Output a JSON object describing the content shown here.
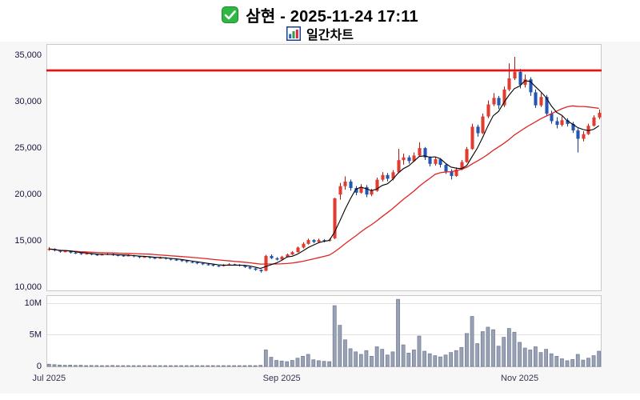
{
  "header": {
    "title": "삼현 - 2025-11-24 17:11",
    "subtitle": "일간차트",
    "icons": {
      "title_icon": "green-checkbox",
      "subtitle_icon": "bar-chart"
    }
  },
  "chart_data": {
    "type": "candlestick+volume",
    "title": "삼현 daily candlestick chart with volume",
    "candle_format": [
      "open",
      "high",
      "low",
      "close",
      "volume_millions"
    ],
    "y_axis": {
      "range": [
        9500,
        36100
      ],
      "ticks": [
        10000,
        15000,
        20000,
        25000,
        30000,
        35000
      ]
    },
    "volume_axis": {
      "range_millions": [
        0,
        11
      ],
      "unit": "shares (millions)",
      "ticks": [
        {
          "value": 0,
          "label": "0"
        },
        {
          "value": 5,
          "label": "5M"
        },
        {
          "value": 10,
          "label": "10M"
        }
      ]
    },
    "x_ticks": [
      {
        "index": 0,
        "label": "Jul 2025"
      },
      {
        "index": 44,
        "label": "Sep 2025"
      },
      {
        "index": 89,
        "label": "Nov 2025"
      }
    ],
    "alert_line_price": 33250,
    "overlays": [
      {
        "name": "ma-slow",
        "window": 20,
        "color": "#e02424",
        "width": 1.3
      },
      {
        "name": "ma-fast",
        "window": 5,
        "color": "#000000",
        "width": 1.1
      }
    ],
    "colors": {
      "up": "#e23b30",
      "up_dark": "#b2170e",
      "down": "#2457b5",
      "down_dark": "#143c8c",
      "volume_bar": "#98a1b5",
      "volume_border": "#6f7990",
      "alert_line": "#f20d0d",
      "panel_border": "#c9c9c9",
      "background": "#f7f7f7",
      "axis_text": "#14143c",
      "x_axis_text": "#33334f"
    },
    "candles": [
      [
        14000,
        14250,
        13850,
        14050,
        0.35
      ],
      [
        14050,
        14120,
        13780,
        13900,
        0.28
      ],
      [
        13900,
        13960,
        13640,
        13750,
        0.22
      ],
      [
        13750,
        13900,
        13700,
        13800,
        0.18
      ],
      [
        13800,
        13860,
        13560,
        13650,
        0.21
      ],
      [
        13650,
        13750,
        13500,
        13600,
        0.16
      ],
      [
        13600,
        13660,
        13410,
        13500,
        0.19
      ],
      [
        13500,
        13660,
        13450,
        13550,
        0.13
      ],
      [
        13550,
        13610,
        13360,
        13450,
        0.15
      ],
      [
        13450,
        13510,
        13300,
        13400,
        0.14
      ],
      [
        13400,
        13560,
        13350,
        13450,
        0.12
      ],
      [
        13450,
        13610,
        13400,
        13500,
        0.12
      ],
      [
        13500,
        13560,
        13300,
        13400,
        0.15
      ],
      [
        13400,
        13460,
        13250,
        13350,
        0.1
      ],
      [
        13350,
        13410,
        13200,
        13300,
        0.12
      ],
      [
        13300,
        13460,
        13250,
        13350,
        0.09
      ],
      [
        13350,
        13410,
        13150,
        13250,
        0.11
      ],
      [
        13250,
        13310,
        13050,
        13150,
        0.13
      ],
      [
        13150,
        13310,
        13100,
        13200,
        0.08
      ],
      [
        13200,
        13260,
        13000,
        13100,
        0.11
      ],
      [
        13100,
        13160,
        12950,
        13050,
        0.09
      ],
      [
        13050,
        13210,
        13000,
        13100,
        0.07
      ],
      [
        13100,
        13160,
        12900,
        13000,
        0.1
      ],
      [
        13000,
        13060,
        12800,
        12900,
        0.12
      ],
      [
        12900,
        13010,
        12760,
        12850,
        0.09
      ],
      [
        12850,
        12910,
        12650,
        12750,
        0.11
      ],
      [
        12750,
        12810,
        12560,
        12650,
        0.1
      ],
      [
        12650,
        12760,
        12510,
        12600,
        0.08
      ],
      [
        12600,
        12660,
        12410,
        12500,
        0.1
      ],
      [
        12500,
        12560,
        12310,
        12400,
        0.11
      ],
      [
        12400,
        12510,
        12260,
        12350,
        0.08
      ],
      [
        12350,
        12410,
        12160,
        12250,
        0.09
      ],
      [
        12250,
        12310,
        12100,
        12200,
        0.07
      ],
      [
        12200,
        12410,
        12160,
        12300,
        0.1
      ],
      [
        12300,
        12510,
        12260,
        12400,
        0.13
      ],
      [
        12400,
        12460,
        12260,
        12350,
        0.08
      ],
      [
        12350,
        12410,
        12160,
        12250,
        0.09
      ],
      [
        12250,
        12310,
        12010,
        12100,
        0.12
      ],
      [
        12100,
        12160,
        11860,
        11950,
        0.14
      ],
      [
        11950,
        12010,
        11710,
        11800,
        0.12
      ],
      [
        11800,
        11860,
        11500,
        11650,
        0.17
      ],
      [
        11700,
        13420,
        11650,
        13300,
        2.6
      ],
      [
        13300,
        13460,
        12960,
        13050,
        1.45
      ],
      [
        13050,
        13160,
        12810,
        12900,
        0.95
      ],
      [
        12900,
        13310,
        12860,
        13200,
        0.85
      ],
      [
        13200,
        13560,
        13150,
        13450,
        0.75
      ],
      [
        13450,
        13810,
        13400,
        13700,
        0.95
      ],
      [
        13700,
        14310,
        13660,
        14200,
        1.3
      ],
      [
        14200,
        14760,
        14110,
        14600,
        1.6
      ],
      [
        14600,
        15160,
        14510,
        15000,
        1.9
      ],
      [
        15000,
        15110,
        14660,
        14800,
        1.05
      ],
      [
        14800,
        15160,
        14710,
        15000,
        0.9
      ],
      [
        15000,
        15110,
        14760,
        14950,
        0.8
      ],
      [
        14950,
        15210,
        14860,
        15050,
        0.75
      ],
      [
        15200,
        19550,
        15110,
        19500,
        9.6
      ],
      [
        19900,
        21150,
        19350,
        20800,
        6.5
      ],
      [
        20800,
        21850,
        20420,
        21300,
        4.2
      ],
      [
        21300,
        21520,
        20310,
        20600,
        2.8
      ],
      [
        20600,
        20820,
        19820,
        20100,
        2.3
      ],
      [
        20100,
        21020,
        20010,
        20700,
        1.9
      ],
      [
        20700,
        20920,
        19620,
        19900,
        2.5
      ],
      [
        19900,
        20520,
        19720,
        20300,
        1.6
      ],
      [
        20300,
        21720,
        20210,
        21500,
        3.1
      ],
      [
        21500,
        22320,
        21310,
        22000,
        2.7
      ],
      [
        22000,
        22220,
        21320,
        21600,
        1.8
      ],
      [
        21600,
        22520,
        21420,
        22300,
        2.3
      ],
      [
        22300,
        24820,
        22210,
        23600,
        10.6
      ],
      [
        23600,
        24320,
        23120,
        23900,
        3.4
      ],
      [
        23900,
        24120,
        23220,
        23500,
        2.1
      ],
      [
        23500,
        24420,
        23420,
        24100,
        2.6
      ],
      [
        24100,
        25520,
        24020,
        24900,
        4.8
      ],
      [
        24900,
        25020,
        23620,
        23900,
        2.4
      ],
      [
        23900,
        24020,
        22920,
        23200,
        2.0
      ],
      [
        23200,
        23920,
        23020,
        23700,
        1.7
      ],
      [
        23700,
        23820,
        22820,
        23100,
        1.5
      ],
      [
        23100,
        23220,
        22120,
        22400,
        1.8
      ],
      [
        22400,
        22620,
        21520,
        21900,
        2.2
      ],
      [
        21900,
        22820,
        21820,
        22600,
        2.5
      ],
      [
        22600,
        23620,
        22520,
        23400,
        3.0
      ],
      [
        23400,
        25020,
        23320,
        24800,
        5.2
      ],
      [
        24800,
        27520,
        24720,
        27200,
        7.9
      ],
      [
        27200,
        27420,
        26120,
        26500,
        3.6
      ],
      [
        26500,
        28620,
        26420,
        28300,
        5.5
      ],
      [
        28300,
        30020,
        28120,
        29600,
        6.2
      ],
      [
        29600,
        30820,
        29420,
        30300,
        5.8
      ],
      [
        30300,
        30520,
        29120,
        29500,
        3.2
      ],
      [
        29500,
        31520,
        29320,
        31200,
        4.6
      ],
      [
        31200,
        34020,
        31020,
        32400,
        6.0
      ],
      [
        32400,
        34720,
        32220,
        33100,
        5.4
      ],
      [
        33100,
        33420,
        31320,
        31700,
        3.8
      ],
      [
        31700,
        32820,
        31420,
        32300,
        2.9
      ],
      [
        32300,
        32520,
        30520,
        30900,
        2.6
      ],
      [
        30900,
        31220,
        29220,
        29500,
        3.1
      ],
      [
        29500,
        30820,
        29320,
        30400,
        2.2
      ],
      [
        30400,
        30620,
        28320,
        28600,
        2.7
      ],
      [
        28600,
        28920,
        27520,
        27800,
        2.0
      ],
      [
        27800,
        28220,
        27020,
        27400,
        1.6
      ],
      [
        27400,
        28320,
        27220,
        27900,
        1.2
      ],
      [
        27900,
        28120,
        27220,
        27500,
        0.9
      ],
      [
        27500,
        27720,
        26520,
        26800,
        1.1
      ],
      [
        26800,
        27020,
        24420,
        25900,
        1.9
      ],
      [
        25900,
        26720,
        25620,
        26400,
        1.0
      ],
      [
        26400,
        27520,
        26320,
        27300,
        1.3
      ],
      [
        27300,
        28420,
        27220,
        28200,
        1.7
      ],
      [
        28200,
        29050,
        28020,
        28700,
        2.4
      ]
    ]
  }
}
